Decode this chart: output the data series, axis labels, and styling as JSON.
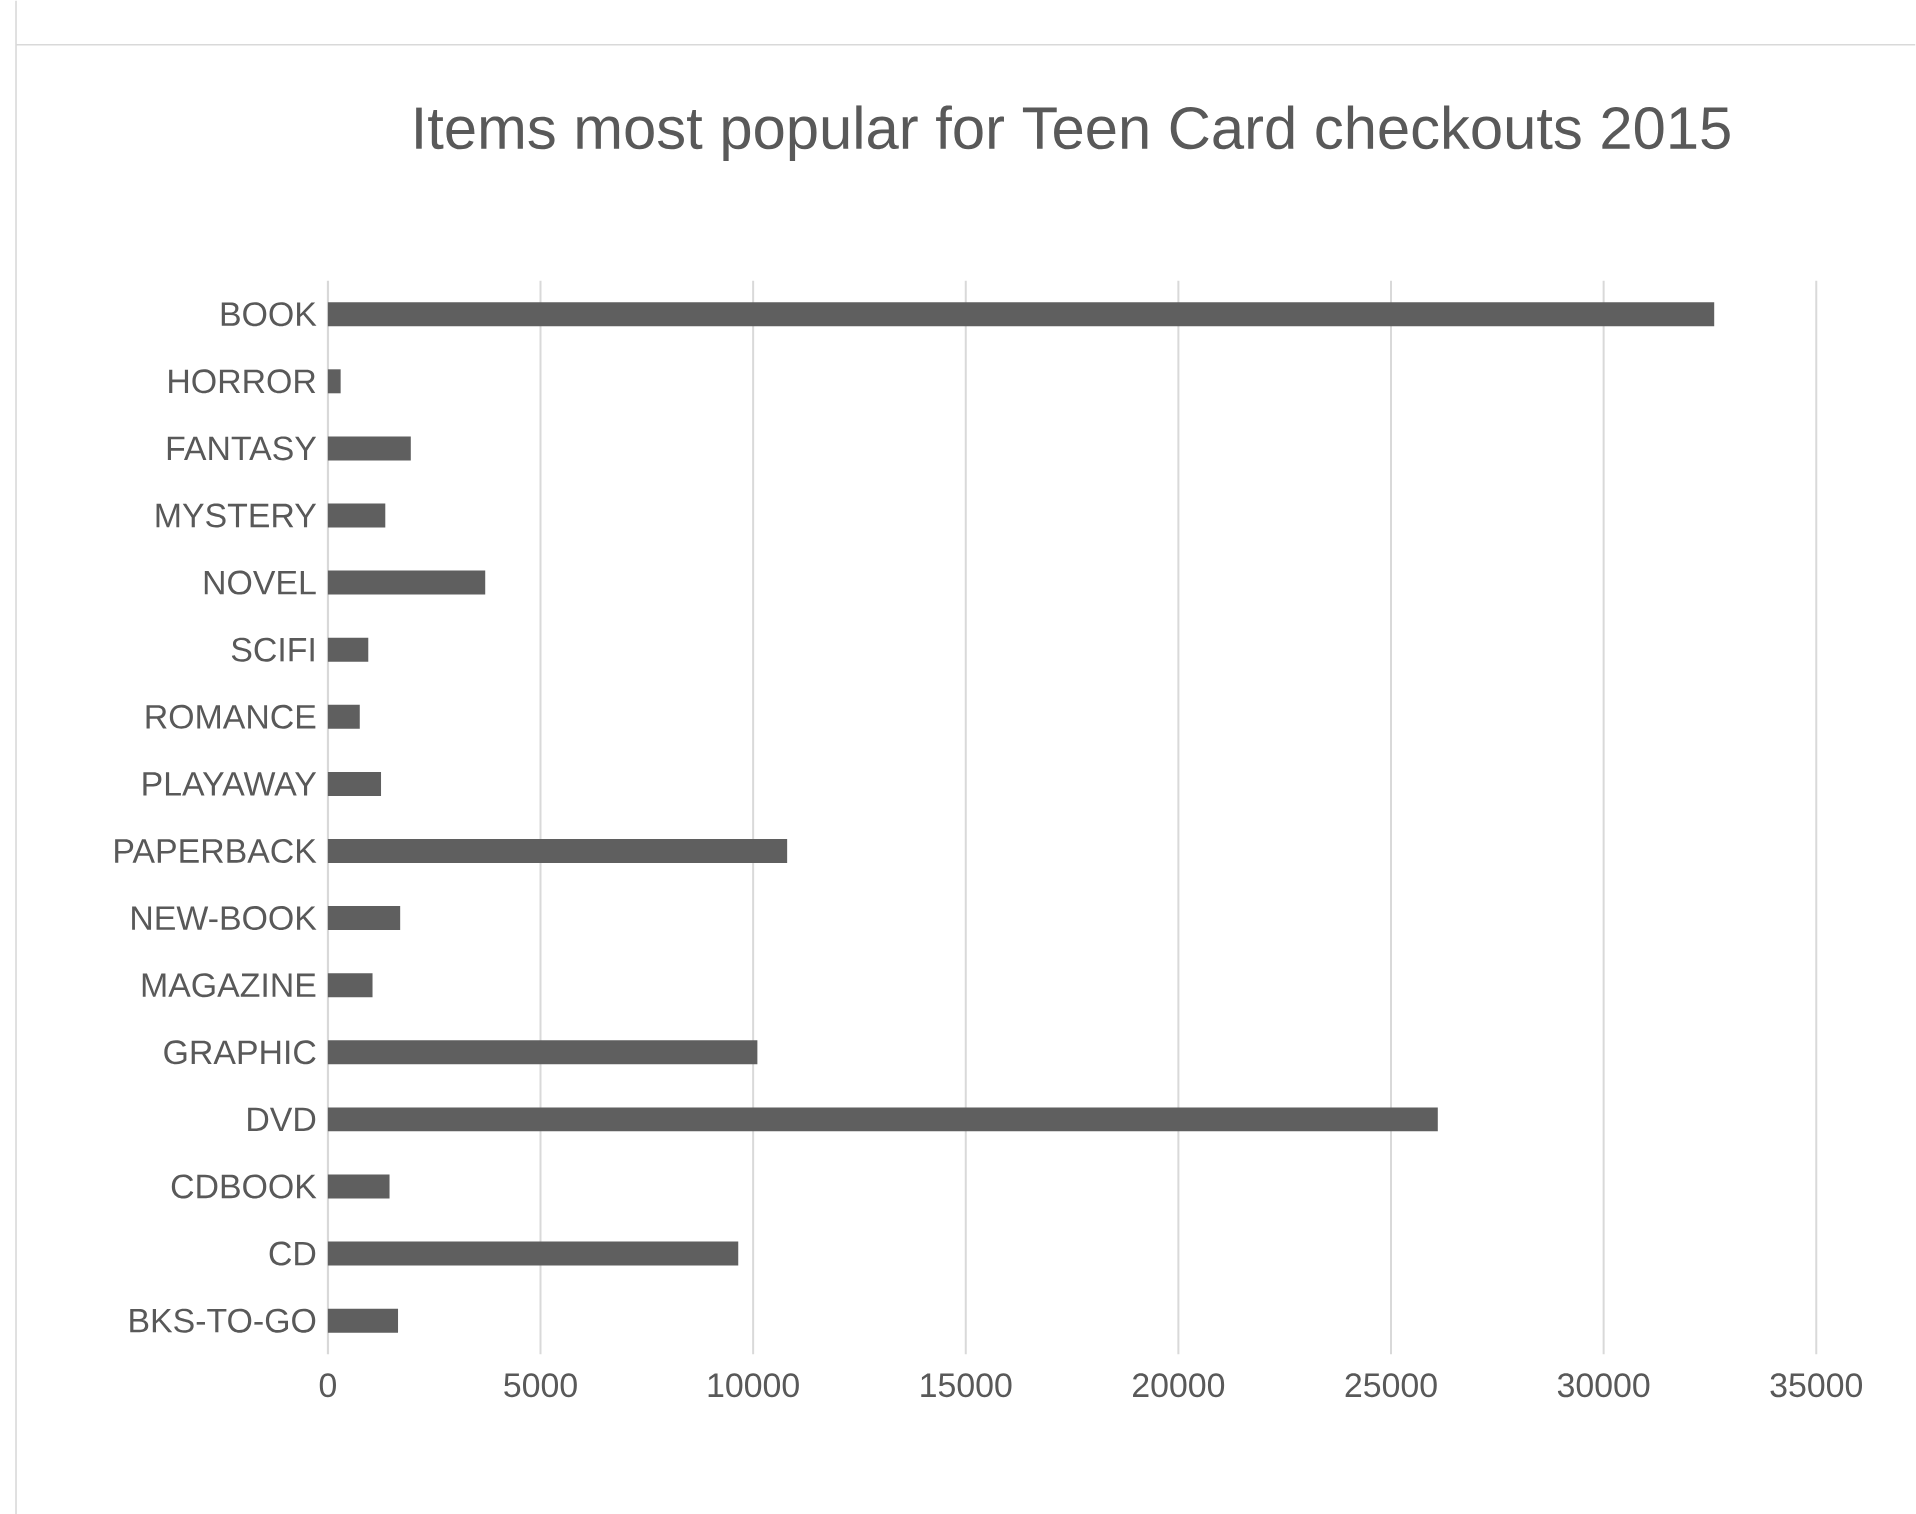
{
  "chart_data": {
    "type": "bar",
    "orientation": "horizontal",
    "title": "Items most popular for Teen Card checkouts 2015",
    "categories": [
      "BOOK",
      "HORROR",
      "FANTASY",
      "MYSTERY",
      "NOVEL",
      "SCIFI",
      "ROMANCE",
      "PLAYAWAY",
      "PAPERBACK",
      "NEW-BOOK",
      "MAGAZINE",
      "GRAPHIC",
      "DVD",
      "CDBOOK",
      "CD",
      "BKS-TO-GO"
    ],
    "values": [
      32600,
      300,
      1950,
      1350,
      3700,
      950,
      750,
      1250,
      10800,
      1700,
      1050,
      10100,
      26100,
      1450,
      9650,
      1650
    ],
    "color": "#5f5f5f",
    "xlim": [
      0,
      35000
    ],
    "xticks": [
      0,
      5000,
      10000,
      15000,
      20000,
      25000,
      30000,
      35000
    ],
    "grid": "x"
  }
}
